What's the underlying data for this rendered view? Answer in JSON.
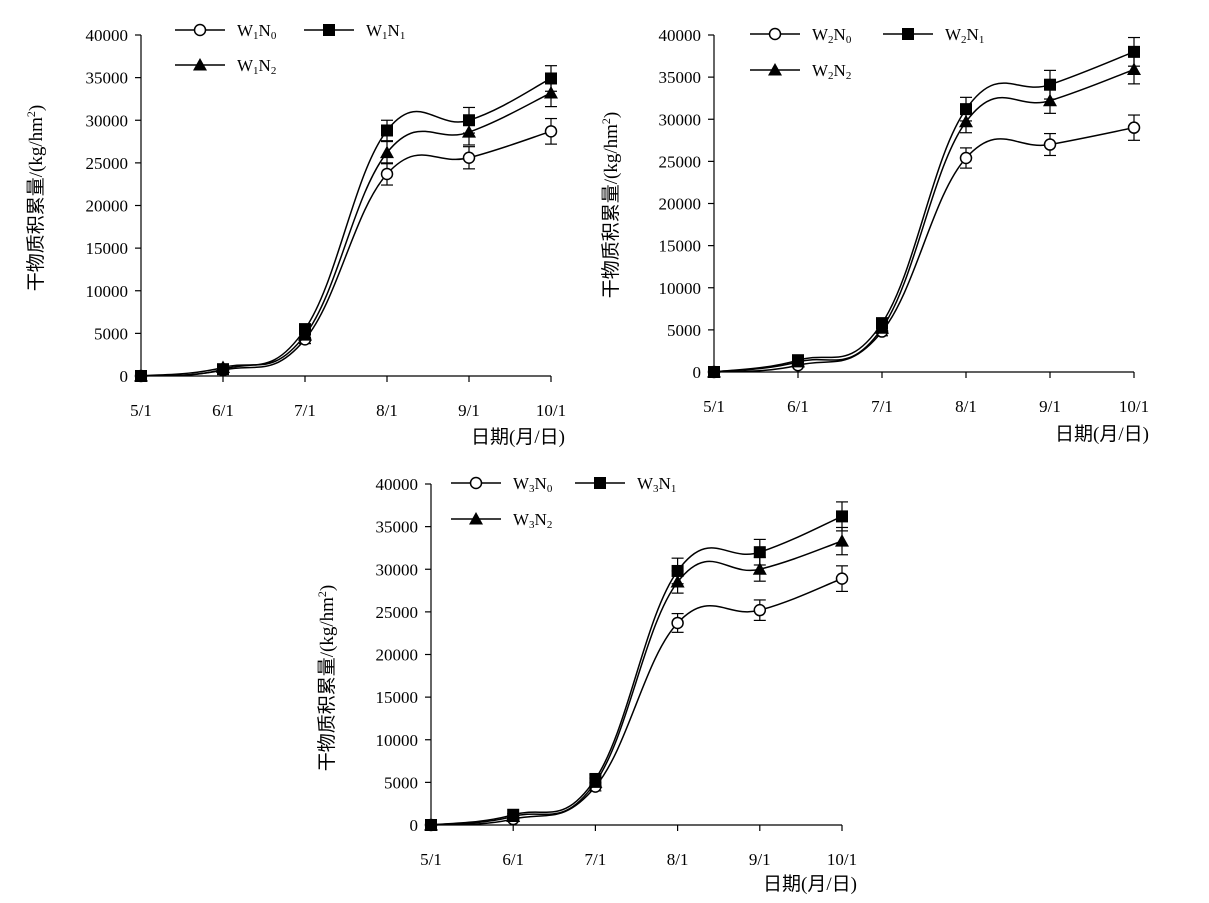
{
  "chart_data": [
    {
      "type": "line",
      "panel": "W1",
      "categories": [
        "5/1",
        "6/1",
        "7/1",
        "8/1",
        "9/1",
        "10/1"
      ],
      "ylabel": "干物质积累量/(kg/hm²)",
      "ylabel_parts": {
        "main": "干物质积累量/(kg/hm",
        "sup": "2",
        "end": ")"
      },
      "xlabel": "日期(月/日)",
      "ylim": [
        0,
        40000
      ],
      "yticks": [
        "0",
        "5000",
        "10000",
        "15000",
        "20000",
        "25000",
        "30000",
        "35000",
        "40000"
      ],
      "legend_placement": "top-left",
      "series": [
        {
          "name": "W1N0",
          "label_main": "W",
          "label_sub1": "1",
          "label_mid": "N",
          "label_sub2": "0",
          "marker": "circle-open",
          "values": [
            0,
            700,
            4300,
            23700,
            25600,
            28700
          ],
          "errors": [
            0,
            150,
            500,
            1300,
            1300,
            1500
          ]
        },
        {
          "name": "W1N1",
          "label_main": "W",
          "label_sub1": "1",
          "label_mid": "N",
          "label_sub2": "1",
          "marker": "square-filled",
          "values": [
            0,
            800,
            5500,
            28800,
            30000,
            34900
          ],
          "errors": [
            0,
            150,
            500,
            1200,
            1500,
            1500
          ]
        },
        {
          "name": "W1N2",
          "label_main": "W",
          "label_sub1": "1",
          "label_mid": "N",
          "label_sub2": "2",
          "marker": "triangle-filled",
          "values": [
            0,
            1000,
            4800,
            26200,
            28600,
            33200
          ],
          "errors": [
            0,
            150,
            500,
            1300,
            1500,
            1600
          ]
        }
      ]
    },
    {
      "type": "line",
      "panel": "W2",
      "categories": [
        "5/1",
        "6/1",
        "7/1",
        "8/1",
        "9/1",
        "10/1"
      ],
      "ylabel": "干物质积累量/(kg/hm²)",
      "ylabel_parts": {
        "main": "干物质积累量/(kg/hm",
        "sup": "2",
        "end": ")"
      },
      "xlabel": "日期(月/日)",
      "ylim": [
        0,
        40000
      ],
      "yticks": [
        "0",
        "5000",
        "10000",
        "15000",
        "20000",
        "25000",
        "30000",
        "35000",
        "40000"
      ],
      "legend_placement": "top-left",
      "series": [
        {
          "name": "W2N0",
          "label_main": "W",
          "label_sub1": "2",
          "label_mid": "N",
          "label_sub2": "0",
          "marker": "circle-open",
          "values": [
            0,
            800,
            4800,
            25400,
            27000,
            29000
          ],
          "errors": [
            0,
            150,
            500,
            1200,
            1300,
            1500
          ]
        },
        {
          "name": "W2N1",
          "label_main": "W",
          "label_sub1": "2",
          "label_mid": "N",
          "label_sub2": "1",
          "marker": "square-filled",
          "values": [
            0,
            1400,
            5800,
            31200,
            34100,
            38000
          ],
          "errors": [
            0,
            150,
            500,
            1400,
            1700,
            1700
          ]
        },
        {
          "name": "W2N2",
          "label_main": "W",
          "label_sub1": "2",
          "label_mid": "N",
          "label_sub2": "2",
          "marker": "triangle-filled",
          "values": [
            0,
            1200,
            5200,
            29700,
            32200,
            35900
          ],
          "errors": [
            0,
            150,
            500,
            1300,
            1500,
            1700
          ]
        }
      ]
    },
    {
      "type": "line",
      "panel": "W3",
      "categories": [
        "5/1",
        "6/1",
        "7/1",
        "8/1",
        "9/1",
        "10/1"
      ],
      "ylabel": "干物质积累量/(kg/hm²)",
      "ylabel_parts": {
        "main": "干物质积累量/(kg/hm",
        "sup": "2",
        "end": ")"
      },
      "xlabel": "日期(月/日)",
      "ylim": [
        0,
        40000
      ],
      "yticks": [
        "0",
        "5000",
        "10000",
        "15000",
        "20000",
        "25000",
        "30000",
        "35000",
        "40000"
      ],
      "legend_placement": "top-left",
      "series": [
        {
          "name": "W3N0",
          "label_main": "W",
          "label_sub1": "3",
          "label_mid": "N",
          "label_sub2": "0",
          "marker": "circle-open",
          "values": [
            0,
            700,
            4500,
            23700,
            25200,
            28900
          ],
          "errors": [
            0,
            150,
            500,
            1100,
            1200,
            1500
          ]
        },
        {
          "name": "W3N1",
          "label_main": "W",
          "label_sub1": "3",
          "label_mid": "N",
          "label_sub2": "1",
          "marker": "square-filled",
          "values": [
            0,
            1200,
            5400,
            29800,
            32000,
            36200
          ],
          "errors": [
            0,
            150,
            500,
            1500,
            1500,
            1700
          ]
        },
        {
          "name": "W3N2",
          "label_main": "W",
          "label_sub1": "3",
          "label_mid": "N",
          "label_sub2": "2",
          "marker": "triangle-filled",
          "values": [
            0,
            1000,
            5000,
            28500,
            30000,
            33300
          ],
          "errors": [
            0,
            150,
            500,
            1300,
            1400,
            1600
          ]
        }
      ]
    }
  ]
}
